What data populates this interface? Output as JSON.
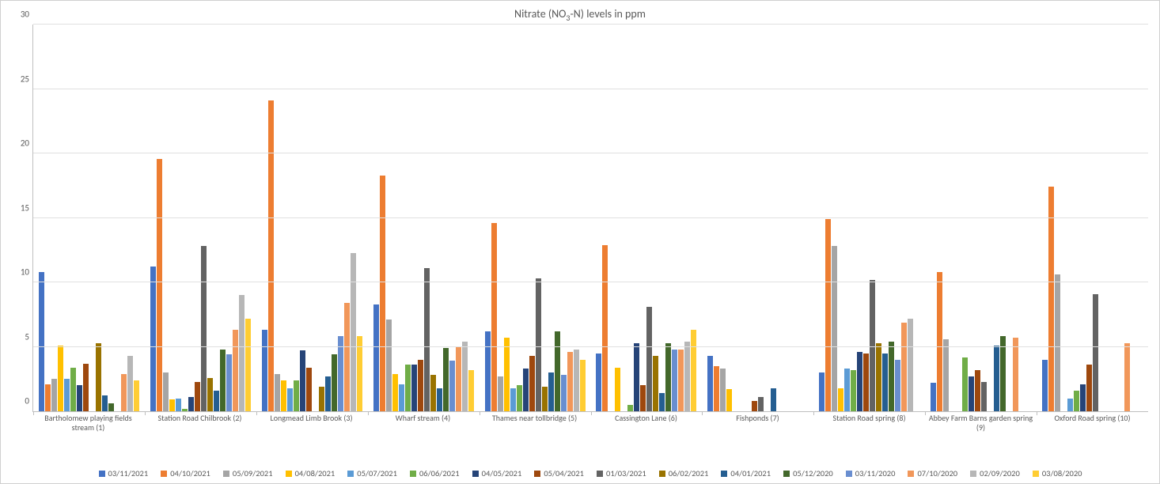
{
  "chart": {
    "type": "bar",
    "title_prefix": "Nitrate (NO",
    "title_sub": "3",
    "title_suffix": "-N) levels in ppm",
    "title_fontsize": 14,
    "title_color": "#595959",
    "background_color": "#ffffff",
    "border_color": "#d0d0d0",
    "grid_color": "#e0e0e0",
    "axis_color": "#bfbfbf",
    "label_color": "#595959",
    "label_fontsize": 10,
    "ylim": [
      0,
      30
    ],
    "ytick_step": 5,
    "yticks": [
      0,
      5,
      10,
      15,
      20,
      25,
      30
    ],
    "categories": [
      "Bartholomew playing fields stream (1)",
      "Station Road Chilbrook (2)",
      "Longmead Limb Brook (3)",
      "Wharf stream (4)",
      "Thames near tollbridge (5)",
      "Cassington Lane (6)",
      "Fishponds (7)",
      "Station Road spring (8)",
      "Abbey Farm Barns garden spring (9)",
      "Oxford Road spring (10)"
    ],
    "series": [
      {
        "label": "03/11/2021",
        "color": "#4472c4",
        "values": [
          10.8,
          11.2,
          6.3,
          8.3,
          6.2,
          4.5,
          4.3,
          3.0,
          2.2,
          4.0
        ]
      },
      {
        "label": "04/10/2021",
        "color": "#ed7d31",
        "values": [
          2.1,
          19.6,
          24.1,
          18.3,
          14.6,
          12.9,
          3.5,
          14.9,
          10.8,
          17.4
        ]
      },
      {
        "label": "05/09/2021",
        "color": "#a5a5a5",
        "values": [
          2.5,
          3.0,
          2.9,
          7.1,
          2.7,
          null,
          3.3,
          12.8,
          5.6,
          10.6
        ]
      },
      {
        "label": "04/08/2021",
        "color": "#ffc000",
        "values": [
          5.1,
          0.9,
          2.4,
          2.9,
          5.7,
          3.4,
          1.7,
          1.8,
          null,
          null
        ]
      },
      {
        "label": "05/07/2021",
        "color": "#5b9bd5",
        "values": [
          2.5,
          1.0,
          1.8,
          2.1,
          1.8,
          null,
          null,
          3.3,
          null,
          1.0
        ]
      },
      {
        "label": "06/06/2021",
        "color": "#70ad47",
        "values": [
          3.4,
          0.2,
          2.4,
          3.6,
          2.0,
          0.5,
          null,
          3.2,
          4.2,
          1.6
        ]
      },
      {
        "label": "04/05/2021",
        "color": "#264478",
        "values": [
          2.0,
          1.1,
          4.7,
          3.6,
          3.3,
          5.3,
          null,
          4.6,
          2.7,
          2.1
        ]
      },
      {
        "label": "05/04/2021",
        "color": "#9e480e",
        "values": [
          3.7,
          2.3,
          3.4,
          4.0,
          4.3,
          2.0,
          0.8,
          4.5,
          3.2,
          3.6
        ]
      },
      {
        "label": "01/03/2021",
        "color": "#636363",
        "values": [
          null,
          12.8,
          null,
          11.1,
          10.3,
          8.1,
          1.1,
          10.2,
          2.3,
          9.1
        ]
      },
      {
        "label": "06/02/2021",
        "color": "#997300",
        "values": [
          5.3,
          2.6,
          1.9,
          2.8,
          1.9,
          4.3,
          null,
          5.3,
          null,
          null
        ]
      },
      {
        "label": "04/01/2021",
        "color": "#255e91",
        "values": [
          1.2,
          1.6,
          2.7,
          1.8,
          3.0,
          1.4,
          1.8,
          4.5,
          5.1,
          null
        ]
      },
      {
        "label": "05/12/2020",
        "color": "#43682b",
        "values": [
          0.6,
          4.8,
          4.4,
          4.9,
          6.2,
          5.3,
          null,
          5.4,
          5.8,
          null
        ]
      },
      {
        "label": "03/11/2020",
        "color": "#698ed0",
        "values": [
          null,
          4.4,
          5.8,
          3.9,
          2.8,
          4.8,
          null,
          4.0,
          null,
          null
        ]
      },
      {
        "label": "07/10/2020",
        "color": "#f1975a",
        "values": [
          2.9,
          6.3,
          8.4,
          5.0,
          4.6,
          4.8,
          null,
          6.9,
          5.7,
          5.3
        ]
      },
      {
        "label": "02/09/2020",
        "color": "#b7b7b7",
        "values": [
          4.3,
          9.0,
          12.3,
          5.4,
          4.8,
          5.4,
          null,
          7.2,
          null,
          null
        ]
      },
      {
        "label": "03/08/2020",
        "color": "#ffcd33",
        "values": [
          2.4,
          7.2,
          5.8,
          3.2,
          4.0,
          6.3,
          null,
          null,
          null,
          null
        ]
      }
    ]
  }
}
